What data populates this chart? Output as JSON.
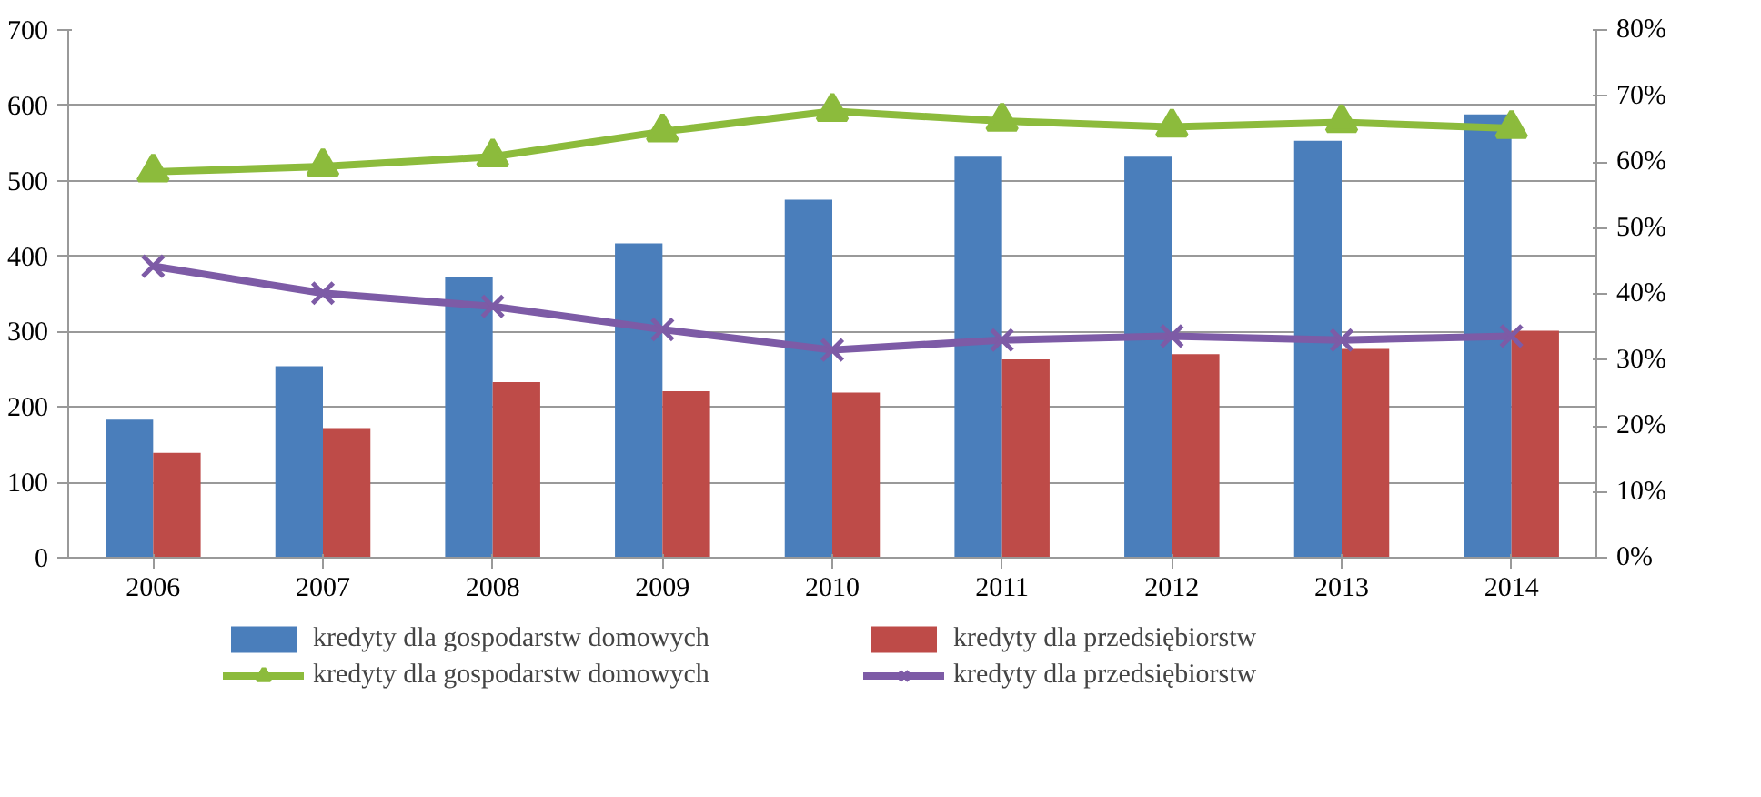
{
  "chart_data": {
    "type": "bar",
    "categories": [
      "2006",
      "2007",
      "2008",
      "2009",
      "2010",
      "2011",
      "2012",
      "2013",
      "2014"
    ],
    "series": [
      {
        "name": "kredyty dla gospodarstw domowych",
        "color": "#4a7ebb",
        "values": [
          183,
          254,
          372,
          417,
          475,
          532,
          532,
          553,
          588
        ]
      },
      {
        "name": "kredyty dla przedsiębiorstw",
        "color": "#be4b48",
        "values": [
          139,
          172,
          233,
          221,
          219,
          263,
          270,
          277,
          301
        ]
      },
      {
        "name": "kredyty dla gospodarstw domowych",
        "type": "line",
        "axis": "y2",
        "marker": "triangle",
        "color": "#8cbb3c",
        "values": [
          58.5,
          59.3,
          60.8,
          64.6,
          67.7,
          66.2,
          65.3,
          66.0,
          65.1
        ]
      },
      {
        "name": "kredyty dla przedsiębiorstw",
        "type": "line",
        "axis": "y2",
        "marker": "cross",
        "color": "#7d5ba6",
        "values": [
          44.2,
          40.1,
          38.1,
          34.6,
          31.5,
          33.0,
          33.6,
          33.0,
          33.6
        ]
      }
    ],
    "ylim": [
      0,
      700
    ],
    "yticks": [
      0,
      100,
      200,
      300,
      400,
      500,
      600,
      700
    ],
    "y2lim": [
      0,
      80
    ],
    "y2ticks": [
      {
        "value": 0,
        "label": "0%"
      },
      {
        "value": 10,
        "label": "10%"
      },
      {
        "value": 20,
        "label": "20%"
      },
      {
        "value": 30,
        "label": "30%"
      },
      {
        "value": 40,
        "label": "40%"
      },
      {
        "value": 50,
        "label": "50%"
      },
      {
        "value": 60,
        "label": "60%"
      },
      {
        "value": 70,
        "label": "70%"
      },
      {
        "value": 80,
        "label": "80%"
      }
    ],
    "grid": "y",
    "legend": "bottom"
  }
}
